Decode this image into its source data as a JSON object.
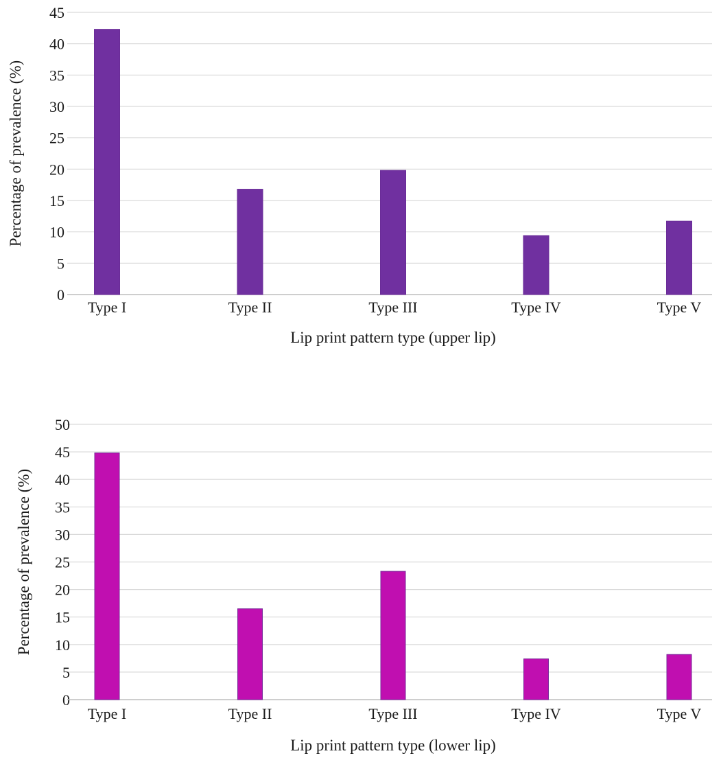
{
  "chart_data": [
    {
      "type": "bar",
      "title": "",
      "categories": [
        "Type I",
        "Type II",
        "Type III",
        "Type IV",
        "Type V"
      ],
      "values": [
        42.3,
        16.8,
        19.8,
        9.4,
        11.7
      ],
      "xlabel": "Lip print pattern type (upper lip)",
      "ylabel": "Percentage of prevalence (%)",
      "ylim": [
        0,
        45
      ],
      "yticks": [
        0,
        5,
        10,
        15,
        20,
        25,
        30,
        35,
        40,
        45
      ],
      "grid": true,
      "bar_color": "#7030a0"
    },
    {
      "type": "bar",
      "title": "",
      "categories": [
        "Type I",
        "Type II",
        "Type III",
        "Type IV",
        "Type V"
      ],
      "values": [
        44.8,
        16.5,
        23.3,
        7.4,
        8.2
      ],
      "xlabel": "Lip print pattern type (lower lip)",
      "ylabel": "Percentage of prevalence (%)",
      "ylim": [
        0,
        50
      ],
      "yticks": [
        0,
        5,
        10,
        15,
        20,
        25,
        30,
        35,
        40,
        45,
        50
      ],
      "grid": true,
      "bar_color": "#c00fb0"
    }
  ]
}
